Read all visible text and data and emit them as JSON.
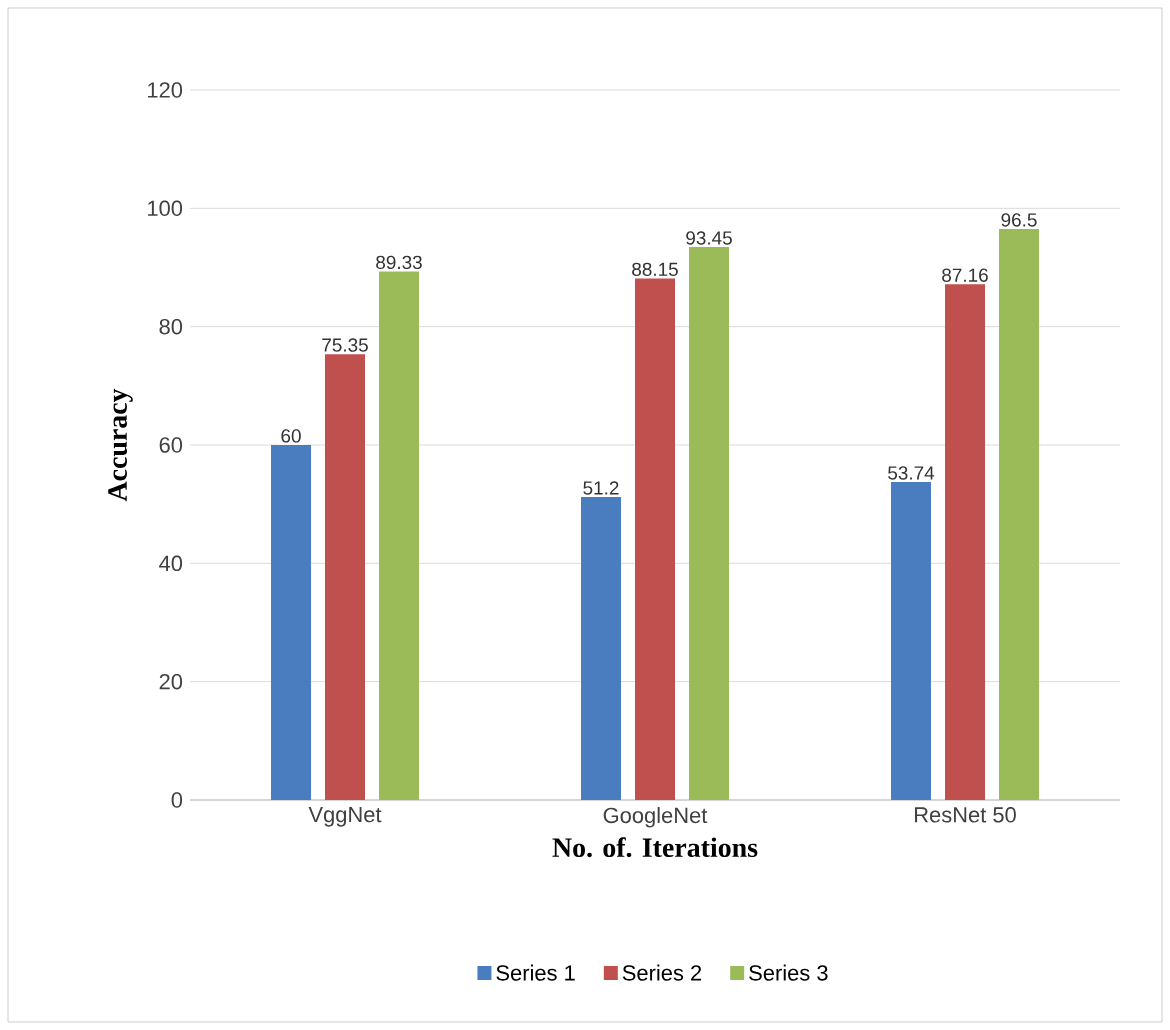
{
  "chart_data": {
    "type": "bar",
    "xlabel": "No. of. Iterations",
    "ylabel": "Accuracy",
    "categories": [
      "VggNet",
      "GoogleNet",
      "ResNet 50"
    ],
    "series": [
      {
        "name": "Series 1",
        "color": "#4a7cc0",
        "values": [
          60,
          51.2,
          53.74
        ]
      },
      {
        "name": "Series 2",
        "color": "#c0504d",
        "values": [
          75.35,
          88.15,
          87.16
        ]
      },
      {
        "name": "Series 3",
        "color": "#9bbb59",
        "values": [
          89.33,
          93.45,
          96.5
        ]
      }
    ],
    "ylim": [
      0,
      120
    ],
    "yticks": [
      0,
      20,
      40,
      60,
      80,
      100,
      120
    ],
    "grid": "y",
    "legend": "bottom",
    "data_labels": true
  }
}
